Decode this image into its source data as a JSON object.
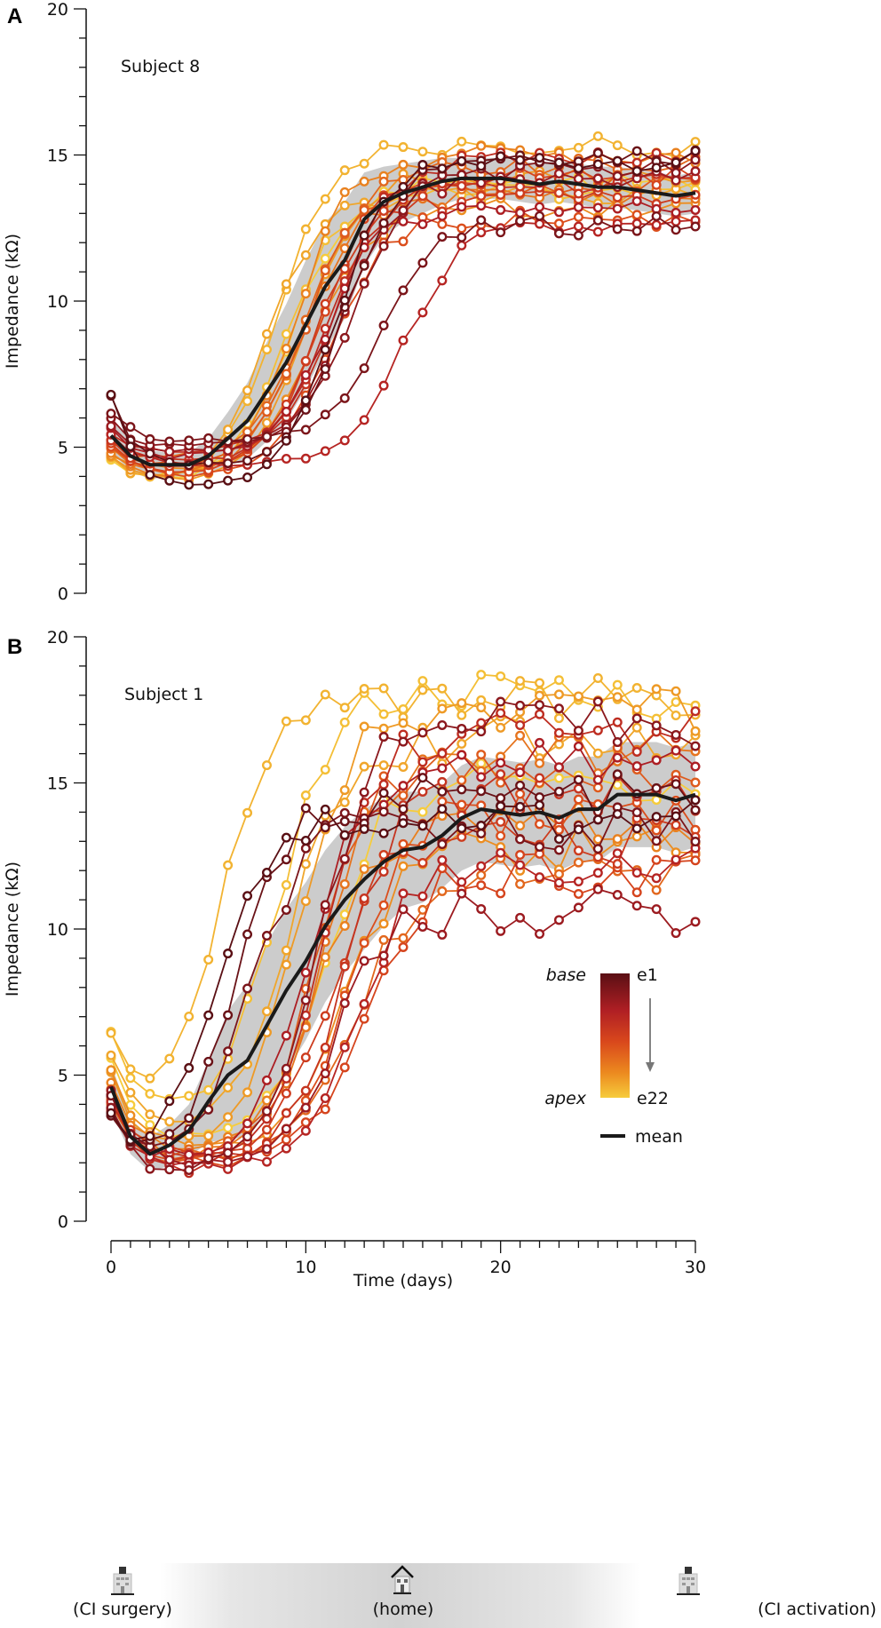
{
  "chart_data": [
    {
      "type": "line",
      "panel_label": "A",
      "subject": "Subject 8",
      "ylabel": "Impedance (kΩ)",
      "xlabel": "Time (days)",
      "xlim": [
        0,
        30
      ],
      "ylim": [
        0,
        20
      ],
      "yticks": [
        "0",
        "5",
        "10",
        "15",
        "20"
      ],
      "x": [
        0,
        1,
        2,
        3,
        4,
        5,
        6,
        7,
        8,
        9,
        10,
        11,
        12,
        13,
        14,
        15,
        16,
        17,
        18,
        19,
        20,
        21,
        22,
        23,
        24,
        25,
        26,
        27,
        28,
        29,
        30
      ],
      "mean": [
        5.4,
        4.7,
        4.4,
        4.4,
        4.4,
        4.7,
        5.3,
        5.9,
        6.9,
        7.9,
        9.2,
        10.5,
        11.4,
        12.8,
        13.4,
        13.7,
        13.9,
        14.1,
        14.2,
        14.2,
        14.2,
        14.1,
        14.0,
        14.1,
        14.0,
        13.9,
        13.9,
        13.8,
        13.7,
        13.6,
        13.7
      ],
      "sd": [
        0.6,
        0.5,
        0.5,
        0.4,
        0.4,
        0.6,
        0.9,
        1.3,
        1.7,
        2.0,
        2.2,
        2.2,
        2.0,
        1.6,
        1.2,
        1.0,
        0.9,
        0.8,
        0.7,
        0.7,
        0.7,
        0.7,
        0.7,
        0.7,
        0.7,
        0.7,
        0.7,
        0.7,
        0.7,
        0.7,
        0.7
      ],
      "electrode_model": {
        "start": [
          6.9,
          6.8,
          6.2,
          5.9,
          5.7,
          5.6,
          5.5,
          5.4,
          5.3,
          5.2,
          5.1,
          5.0,
          5.0,
          4.9,
          4.9,
          4.8,
          4.8,
          4.7,
          4.7,
          4.6,
          4.6,
          4.6
        ],
        "min": [
          3.6,
          4.3,
          5.2,
          5.0,
          4.8,
          4.6,
          4.4,
          4.8,
          4.5,
          4.2,
          4.1,
          4.0,
          4.3,
          4.6,
          4.0,
          3.9,
          4.2,
          3.8,
          3.7,
          3.7,
          3.9,
          3.8
        ],
        "plateau": [
          14.8,
          15.0,
          12.6,
          14.5,
          14.2,
          13.2,
          12.5,
          14.8,
          14.0,
          13.5,
          14.3,
          12.8,
          14.0,
          14.6,
          13.6,
          15.0,
          13.2,
          14.3,
          13.6,
          15.3,
          13.8,
          14.0
        ],
        "mid_day": [
          11.5,
          12.0,
          13.8,
          12.5,
          12.0,
          11.0,
          15.0,
          11.5,
          11.3,
          10.5,
          10.8,
          11.2,
          10.0,
          10.2,
          9.8,
          9.5,
          10.5,
          10.0,
          8.0,
          8.5,
          9.0,
          9.3
        ],
        "noise": 0.35
      }
    },
    {
      "type": "line",
      "panel_label": "B",
      "subject": "Subject 1",
      "ylabel": "Impedance (kΩ)",
      "xlabel": "Time (days)",
      "xlim": [
        0,
        30
      ],
      "ylim": [
        0,
        20
      ],
      "yticks": [
        "0",
        "5",
        "10",
        "15",
        "20"
      ],
      "xticks": [
        "0",
        "10",
        "20",
        "30"
      ],
      "x": [
        0,
        1,
        2,
        3,
        4,
        5,
        6,
        7,
        8,
        9,
        10,
        11,
        12,
        13,
        14,
        15,
        16,
        17,
        18,
        19,
        20,
        21,
        22,
        23,
        24,
        25,
        26,
        27,
        28,
        29,
        30
      ],
      "mean": [
        4.6,
        2.9,
        2.3,
        2.6,
        3.1,
        4.1,
        5.0,
        5.5,
        6.7,
        7.9,
        8.9,
        10.1,
        11.0,
        11.7,
        12.3,
        12.7,
        12.8,
        13.2,
        13.8,
        14.1,
        14.0,
        13.9,
        14.0,
        13.8,
        14.1,
        14.1,
        14.6,
        14.6,
        14.6,
        14.4,
        14.6
      ],
      "sd": [
        0.8,
        0.6,
        0.6,
        0.7,
        0.9,
        1.4,
        2.2,
        2.6,
        2.8,
        2.8,
        2.7,
        2.6,
        2.5,
        2.4,
        2.2,
        2.0,
        1.9,
        1.8,
        1.8,
        1.8,
        1.8,
        1.8,
        1.8,
        1.8,
        1.8,
        1.8,
        1.8,
        1.8,
        1.8,
        1.8,
        1.8
      ],
      "electrode_model": {
        "start": [
          3.2,
          3.6,
          4.2,
          4.0,
          4.6,
          4.4,
          3.9,
          4.1,
          3.8,
          4.3,
          4.1,
          4.5,
          4.0,
          4.2,
          4.4,
          4.8,
          5.0,
          5.2,
          5.8,
          6.2,
          6.3,
          5.4
        ],
        "min": [
          1.8,
          1.9,
          1.7,
          1.6,
          1.9,
          2.0,
          1.8,
          1.7,
          2.1,
          2.0,
          2.2,
          1.9,
          2.0,
          2.3,
          2.1,
          2.4,
          2.6,
          2.5,
          3.0,
          3.4,
          3.6,
          2.8
        ],
        "plateau": [
          13.8,
          14.5,
          13.5,
          17.0,
          10.6,
          15.6,
          12.2,
          16.8,
          14.8,
          13.0,
          12.0,
          14.0,
          15.5,
          11.8,
          16.0,
          13.5,
          12.8,
          17.5,
          16.5,
          17.8,
          18.0,
          15.0
        ],
        "mid_day": [
          5.2,
          6.5,
          7.0,
          10.5,
          11.5,
          10.0,
          12.5,
          10.8,
          12.0,
          11.0,
          13.0,
          12.2,
          10.5,
          12.5,
          11.0,
          10.5,
          12.0,
          9.5,
          9.0,
          5.5,
          8.5,
          11.0
        ],
        "noise": 0.8
      }
    }
  ],
  "legend": {
    "base_label": "base",
    "apex_label": "apex",
    "first_electrode": "e1",
    "last_electrode": "e22",
    "mean_label": "mean",
    "colors": [
      "#5a0f14",
      "#b01f24",
      "#d9481c",
      "#ec8a1f",
      "#f6cc3c"
    ],
    "mean_color": "#1a1a1a",
    "band_color": "#cccccc"
  },
  "timeline": {
    "left_label": "(CI surgery)",
    "middle_label": "(home)",
    "right_label": "(CI activation)",
    "left_icon": "hospital-icon",
    "middle_icon": "house-icon",
    "right_icon": "hospital-icon"
  }
}
